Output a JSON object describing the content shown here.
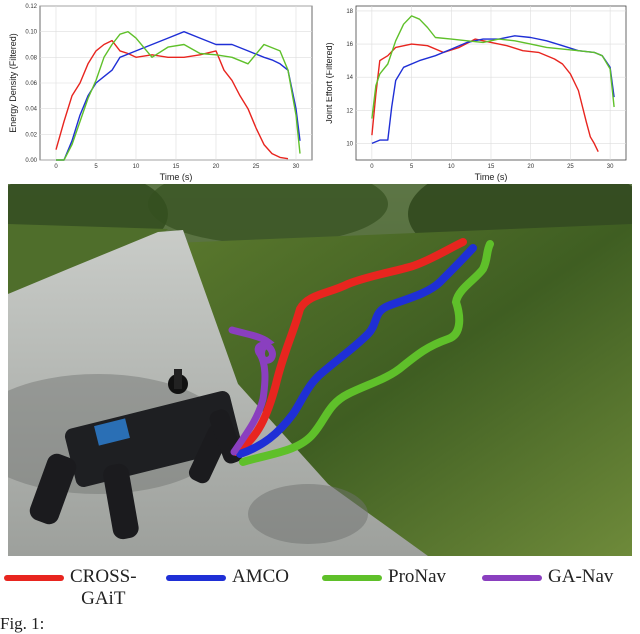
{
  "colors": {
    "cross_gait": "#e8251f",
    "amco": "#1f2fd6",
    "pronav": "#5fc02a",
    "ga_nav": "#8a3fbf"
  },
  "chart_data": [
    {
      "type": "line",
      "xlabel": "Time (s)",
      "ylabel": "Energy Density (Filtered)",
      "xlim": [
        -2,
        32
      ],
      "ylim": [
        0.0,
        0.12
      ],
      "x_ticks": [
        "0",
        "5",
        "10",
        "15",
        "20",
        "25",
        "30"
      ],
      "x_tick_values": [
        0,
        5,
        10,
        15,
        20,
        25,
        30
      ],
      "y_ticks": [
        "0.00",
        "0.02",
        "0.04",
        "0.06",
        "0.08",
        "0.10",
        "0.12"
      ],
      "y_tick_values": [
        0.0,
        0.02,
        0.04,
        0.06,
        0.08,
        0.1,
        0.12
      ],
      "grid": true,
      "series": [
        {
          "color_key": "cross_gait",
          "x": [
            0,
            1,
            2,
            3,
            4,
            5,
            6,
            7,
            8,
            9,
            10,
            12,
            14,
            16,
            18,
            20,
            21,
            22,
            23,
            24,
            25,
            26,
            27,
            28,
            29
          ],
          "y": [
            0.008,
            0.03,
            0.05,
            0.06,
            0.075,
            0.085,
            0.09,
            0.093,
            0.085,
            0.083,
            0.08,
            0.082,
            0.08,
            0.08,
            0.082,
            0.085,
            0.07,
            0.062,
            0.05,
            0.04,
            0.025,
            0.012,
            0.005,
            0.002,
            0.001
          ]
        },
        {
          "color_key": "amco",
          "x": [
            0,
            1,
            2,
            3,
            4,
            5,
            6,
            7,
            8,
            10,
            12,
            14,
            16,
            18,
            20,
            22,
            24,
            26,
            27,
            28,
            29,
            30,
            30.5
          ],
          "y": [
            0.0,
            0.0,
            0.015,
            0.035,
            0.05,
            0.06,
            0.065,
            0.07,
            0.08,
            0.085,
            0.09,
            0.095,
            0.1,
            0.095,
            0.09,
            0.09,
            0.085,
            0.08,
            0.078,
            0.075,
            0.07,
            0.04,
            0.015
          ]
        },
        {
          "color_key": "pronav",
          "x": [
            0,
            1,
            2,
            3,
            4,
            5,
            6,
            7,
            8,
            9,
            10,
            12,
            14,
            16,
            18,
            20,
            22,
            24,
            26,
            28,
            29,
            30,
            30.5
          ],
          "y": [
            0.0,
            0.0,
            0.012,
            0.03,
            0.048,
            0.062,
            0.08,
            0.09,
            0.098,
            0.1,
            0.095,
            0.08,
            0.088,
            0.09,
            0.083,
            0.082,
            0.08,
            0.075,
            0.09,
            0.085,
            0.07,
            0.035,
            0.005
          ]
        }
      ]
    },
    {
      "type": "line",
      "xlabel": "Time (s)",
      "ylabel": "Joint Effort (Filtered)",
      "xlim": [
        -2,
        32
      ],
      "ylim": [
        9,
        18.3
      ],
      "x_ticks": [
        "0",
        "5",
        "10",
        "15",
        "20",
        "25",
        "30"
      ],
      "x_tick_values": [
        0,
        5,
        10,
        15,
        20,
        25,
        30
      ],
      "y_ticks": [
        "10",
        "12",
        "14",
        "16",
        "18"
      ],
      "y_tick_values": [
        10,
        12,
        14,
        16,
        18
      ],
      "grid": true,
      "series": [
        {
          "color_key": "cross_gait",
          "x": [
            0,
            0.5,
            1,
            2,
            3,
            5,
            7,
            9,
            11,
            13,
            15,
            17,
            19,
            21,
            23,
            24,
            25,
            26,
            27,
            27.5,
            28,
            28.5
          ],
          "y": [
            10.5,
            13,
            15,
            15.3,
            15.8,
            16,
            15.9,
            15.5,
            15.8,
            16.3,
            16.1,
            15.9,
            15.6,
            15.5,
            15.1,
            14.8,
            14.2,
            13.2,
            11.3,
            10.4,
            10,
            9.5
          ]
        },
        {
          "color_key": "amco",
          "x": [
            0,
            1,
            2,
            2.5,
            3,
            4,
            6,
            8,
            10,
            12,
            14,
            16,
            18,
            20,
            22,
            24,
            26,
            28,
            29,
            30,
            30.5
          ],
          "y": [
            10,
            10.2,
            10.2,
            12.2,
            13.8,
            14.6,
            15,
            15.3,
            15.7,
            16.1,
            16.3,
            16.3,
            16.5,
            16.4,
            16.2,
            15.9,
            15.6,
            15.5,
            15.3,
            14.6,
            12.8
          ]
        },
        {
          "color_key": "pronav",
          "x": [
            0,
            0.5,
            1,
            2,
            3,
            4,
            5,
            6,
            7,
            8,
            10,
            12,
            14,
            16,
            18,
            20,
            22,
            24,
            26,
            28,
            29,
            30,
            30.5
          ],
          "y": [
            11.5,
            13.5,
            14.2,
            14.8,
            16.2,
            17.2,
            17.7,
            17.5,
            17,
            16.4,
            16.3,
            16.2,
            16.1,
            16.3,
            16.2,
            16,
            15.8,
            15.7,
            15.6,
            15.5,
            15.3,
            14.5,
            12.2
          ]
        }
      ]
    }
  ],
  "legend": {
    "items": [
      {
        "label": "CROSS-",
        "label2": "GAiT",
        "color_key": "cross_gait"
      },
      {
        "label": "AMCO",
        "color_key": "amco"
      },
      {
        "label": "ProNav",
        "color_key": "pronav"
      },
      {
        "label": "GA-Nav",
        "color_key": "ga_nav"
      }
    ]
  },
  "caption": "Fig. 1:"
}
